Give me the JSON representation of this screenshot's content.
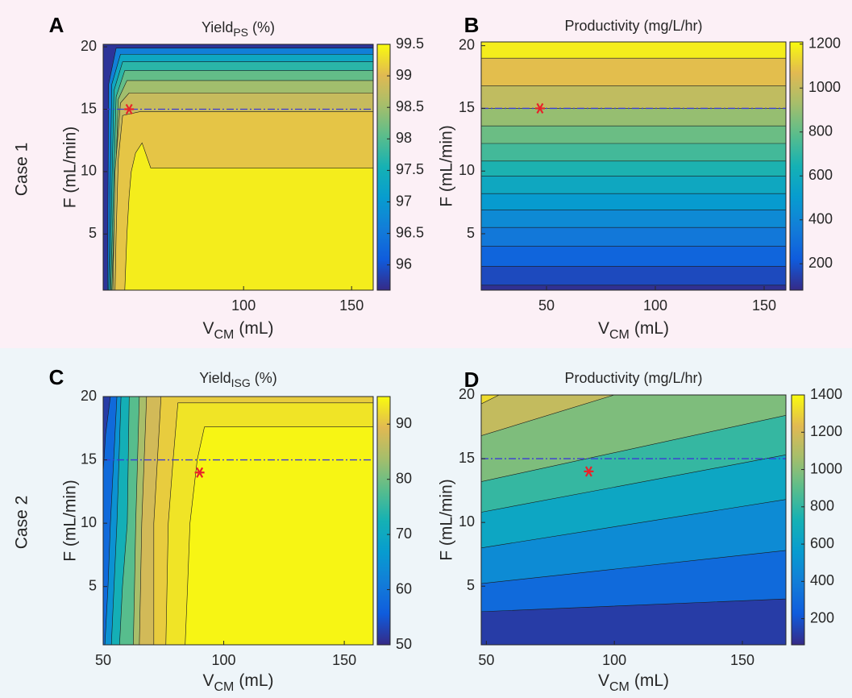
{
  "row_labels": [
    "Case 1",
    "Case 2"
  ],
  "chart_data": [
    {
      "type": "contour",
      "panel_label": "A",
      "title": "Yield",
      "title_sub": "PS",
      "title_suffix": "(%)",
      "xlabel": "V",
      "xlabel_sub": "CM",
      "xlabel_suffix": "(mL)",
      "ylabel": "F (mL/min)",
      "xlim": [
        35,
        160
      ],
      "ylim": [
        0.5,
        20.2
      ],
      "xticks": [
        100,
        150
      ],
      "yticks": [
        5,
        10,
        15,
        20
      ],
      "clim": [
        95.6,
        99.5
      ],
      "cticks": [
        96,
        96.5,
        97,
        97.5,
        98,
        98.5,
        99,
        99.5
      ],
      "colormap": "parula",
      "fills": [
        {
          "level": 95.7,
          "x": [
            35,
            160,
            160,
            35
          ],
          "y": [
            0.5,
            0.5,
            20.2,
            20.2
          ]
        },
        {
          "level": 96.6,
          "x": [
            37,
            160,
            160,
            41,
            37.5
          ],
          "y": [
            0.5,
            0.5,
            19.9,
            19.9,
            17
          ]
        },
        {
          "level": 97.3,
          "x": [
            37.5,
            160,
            160,
            43,
            39
          ],
          "y": [
            0.5,
            0.5,
            19.4,
            19.4,
            17
          ]
        },
        {
          "level": 97.7,
          "x": [
            38,
            160,
            160,
            44,
            40
          ],
          "y": [
            0.5,
            0.5,
            18.8,
            18.8,
            16.5
          ]
        },
        {
          "level": 98.1,
          "x": [
            38.5,
            160,
            160,
            45,
            41
          ],
          "y": [
            0.5,
            0.5,
            18.1,
            18.1,
            16
          ]
        },
        {
          "level": 98.5,
          "x": [
            39,
            160,
            160,
            46,
            42
          ],
          "y": [
            0.5,
            0.5,
            17.3,
            17.3,
            15.8
          ]
        },
        {
          "level": 98.8,
          "x": [
            39.5,
            160,
            160,
            47,
            43,
            40.5
          ],
          "y": [
            0.5,
            0.5,
            16.3,
            16.3,
            15.5,
            10
          ]
        },
        {
          "level": 99.1,
          "x": [
            40.5,
            160,
            160,
            52,
            44,
            42,
            41
          ],
          "y": [
            0.5,
            0.5,
            14.8,
            14.8,
            14.5,
            11,
            5
          ]
        },
        {
          "level": 99.4,
          "x": [
            45,
            160,
            160,
            57,
            53,
            50,
            48,
            47,
            46
          ],
          "y": [
            0.5,
            0.5,
            10.3,
            10.3,
            12.3,
            11.5,
            10,
            8,
            5
          ]
        }
      ],
      "hline": {
        "y": 15,
        "color": "#3b3bd6"
      },
      "marker": {
        "x": 47,
        "y": 15,
        "color": "#e8232a"
      }
    },
    {
      "type": "contour",
      "panel_label": "B",
      "title": "Productivity (mg/L/hr)",
      "xlabel": "V",
      "xlabel_sub": "CM",
      "xlabel_suffix": "(mL)",
      "ylabel": "F (mL/min)",
      "xlim": [
        20,
        160
      ],
      "ylim": [
        0.5,
        20.3
      ],
      "xticks": [
        50,
        100,
        150
      ],
      "yticks": [
        5,
        10,
        15,
        20
      ],
      "clim": [
        80,
        1210
      ],
      "cticks": [
        200,
        400,
        600,
        800,
        1000,
        1200
      ],
      "colormap": "parula",
      "fills": [
        {
          "level": 100,
          "x": [
            20,
            160,
            160,
            20
          ],
          "y": [
            0.5,
            0.5,
            20.3,
            20.3
          ]
        },
        {
          "level": 170,
          "x": [
            20,
            160,
            160,
            20
          ],
          "y": [
            0.9,
            0.9,
            20.3,
            20.3
          ]
        },
        {
          "level": 260,
          "x": [
            20,
            160,
            160,
            20
          ],
          "y": [
            2.4,
            2.4,
            20.3,
            20.3
          ]
        },
        {
          "level": 340,
          "x": [
            20,
            160,
            160,
            20
          ],
          "y": [
            4.0,
            4.0,
            20.3,
            20.3
          ]
        },
        {
          "level": 420,
          "x": [
            20,
            160,
            160,
            20
          ],
          "y": [
            5.5,
            5.5,
            20.3,
            20.3
          ]
        },
        {
          "level": 500,
          "x": [
            20,
            160,
            160,
            20
          ],
          "y": [
            6.9,
            6.9,
            20.3,
            20.3
          ]
        },
        {
          "level": 580,
          "x": [
            20,
            160,
            160,
            20
          ],
          "y": [
            8.2,
            8.2,
            20.3,
            20.3
          ]
        },
        {
          "level": 660,
          "x": [
            20,
            160,
            160,
            20
          ],
          "y": [
            9.6,
            9.6,
            20.3,
            20.3
          ]
        },
        {
          "level": 740,
          "x": [
            20,
            160,
            160,
            20
          ],
          "y": [
            10.8,
            10.8,
            20.3,
            20.3
          ]
        },
        {
          "level": 820,
          "x": [
            20,
            160,
            160,
            20
          ],
          "y": [
            12.2,
            12.2,
            20.3,
            20.3
          ]
        },
        {
          "level": 900,
          "x": [
            20,
            160,
            160,
            20
          ],
          "y": [
            13.6,
            13.6,
            20.3,
            20.3
          ]
        },
        {
          "level": 990,
          "x": [
            20,
            160,
            160,
            20
          ],
          "y": [
            15.0,
            15.0,
            20.3,
            20.3
          ]
        },
        {
          "level": 1080,
          "x": [
            20,
            160,
            160,
            20
          ],
          "y": [
            16.8,
            16.8,
            20.3,
            20.3
          ]
        },
        {
          "level": 1180,
          "x": [
            20,
            160,
            160,
            20
          ],
          "y": [
            19.0,
            19.0,
            20.3,
            20.3
          ]
        }
      ],
      "hline": {
        "y": 15,
        "color": "#3b3bd6"
      },
      "marker": {
        "x": 47,
        "y": 15,
        "color": "#e8232a"
      }
    },
    {
      "type": "contour",
      "panel_label": "C",
      "title": "Yield",
      "title_sub": "ISG",
      "title_suffix": "(%)",
      "xlabel": "V",
      "xlabel_sub": "CM",
      "xlabel_suffix": "(mL)",
      "ylabel": "F (mL/min)",
      "xlim": [
        50,
        162
      ],
      "ylim": [
        0.4,
        20
      ],
      "xticks": [
        50,
        100,
        150
      ],
      "yticks": [
        5,
        10,
        15,
        20
      ],
      "clim": [
        50,
        95
      ],
      "cticks": [
        50,
        60,
        70,
        80,
        90
      ],
      "colormap": "parula",
      "fills": [
        {
          "level": 52,
          "x": [
            50,
            162,
            162,
            50
          ],
          "y": [
            0.4,
            0.4,
            20,
            20
          ]
        },
        {
          "level": 58,
          "x": [
            50,
            162,
            162,
            53,
            51,
            50
          ],
          "y": [
            0.4,
            0.4,
            20,
            20,
            17,
            14
          ]
        },
        {
          "level": 65,
          "x": [
            50.7,
            162,
            162,
            55.7,
            53,
            52
          ],
          "y": [
            0.4,
            0.4,
            20,
            20,
            10,
            5
          ]
        },
        {
          "level": 72,
          "x": [
            53.4,
            162,
            162,
            57.4,
            55.7,
            54.5
          ],
          "y": [
            0.4,
            0.4,
            20,
            20,
            10,
            5
          ]
        },
        {
          "level": 78,
          "x": [
            56.8,
            162,
            162,
            60.8,
            60,
            58
          ],
          "y": [
            0.4,
            0.4,
            20,
            20,
            10,
            5
          ]
        },
        {
          "level": 84,
          "x": [
            62.5,
            162,
            162,
            65,
            63.5,
            63
          ],
          "y": [
            0.4,
            0.4,
            20,
            20,
            10,
            5
          ]
        },
        {
          "level": 88,
          "x": [
            65,
            162,
            162,
            68,
            66,
            65.5
          ],
          "y": [
            0.4,
            0.4,
            20,
            20,
            10,
            5
          ]
        },
        {
          "level": 91,
          "x": [
            71,
            162,
            162,
            74,
            71,
            71
          ],
          "y": [
            0.4,
            0.4,
            20,
            20,
            10,
            5
          ]
        },
        {
          "level": 93,
          "x": [
            76,
            162,
            162,
            81,
            79,
            77
          ],
          "y": [
            0.4,
            0.4,
            19.5,
            19.5,
            15,
            10
          ]
        },
        {
          "level": 94.5,
          "x": [
            84,
            162,
            162,
            92,
            89,
            86,
            85
          ],
          "y": [
            0.4,
            0.4,
            17.6,
            17.6,
            15,
            10,
            5
          ]
        }
      ],
      "hline": {
        "y": 15,
        "color": "#3b3bd6"
      },
      "marker": {
        "x": 90,
        "y": 14,
        "color": "#e8232a"
      }
    },
    {
      "type": "contour",
      "panel_label": "D",
      "title": "Productivity (mg/L/hr)",
      "xlabel": "V",
      "xlabel_sub": "CM",
      "xlabel_suffix": "(mL)",
      "ylabel": "F (mL/min)",
      "xlim": [
        48,
        167
      ],
      "ylim": [
        0.4,
        20
      ],
      "xticks": [
        50,
        100,
        150
      ],
      "yticks": [
        5,
        10,
        15,
        20
      ],
      "clim": [
        60,
        1400
      ],
      "cticks": [
        200,
        400,
        600,
        800,
        1000,
        1200,
        1400
      ],
      "colormap": "parula",
      "fills": [
        {
          "level": 120,
          "x": [
            48,
            167,
            167,
            48
          ],
          "y": [
            0.4,
            0.4,
            20,
            20
          ]
        },
        {
          "level": 300,
          "x": [
            48,
            167,
            167,
            48
          ],
          "y": [
            3.0,
            4.0,
            20,
            20
          ]
        },
        {
          "level": 470,
          "x": [
            48,
            167,
            167,
            48
          ],
          "y": [
            5.2,
            7.8,
            20,
            20
          ]
        },
        {
          "level": 640,
          "x": [
            48,
            167,
            167,
            48
          ],
          "y": [
            8.0,
            11.8,
            20,
            20
          ]
        },
        {
          "level": 810,
          "x": [
            48,
            167,
            167,
            48
          ],
          "y": [
            10.8,
            15.3,
            20,
            20
          ]
        },
        {
          "level": 980,
          "x": [
            48,
            167,
            167,
            48
          ],
          "y": [
            13.2,
            18.4,
            20,
            20
          ]
        },
        {
          "level": 1150,
          "x": [
            48,
            100,
            48
          ],
          "y": [
            16.8,
            20,
            20
          ]
        },
        {
          "level": 1320,
          "x": [
            48,
            55,
            48
          ],
          "y": [
            19.3,
            20,
            20
          ]
        }
      ],
      "hline": {
        "y": 15,
        "color": "#3b3bd6"
      },
      "marker": {
        "x": 90,
        "y": 14,
        "color": "#e8232a"
      }
    }
  ]
}
